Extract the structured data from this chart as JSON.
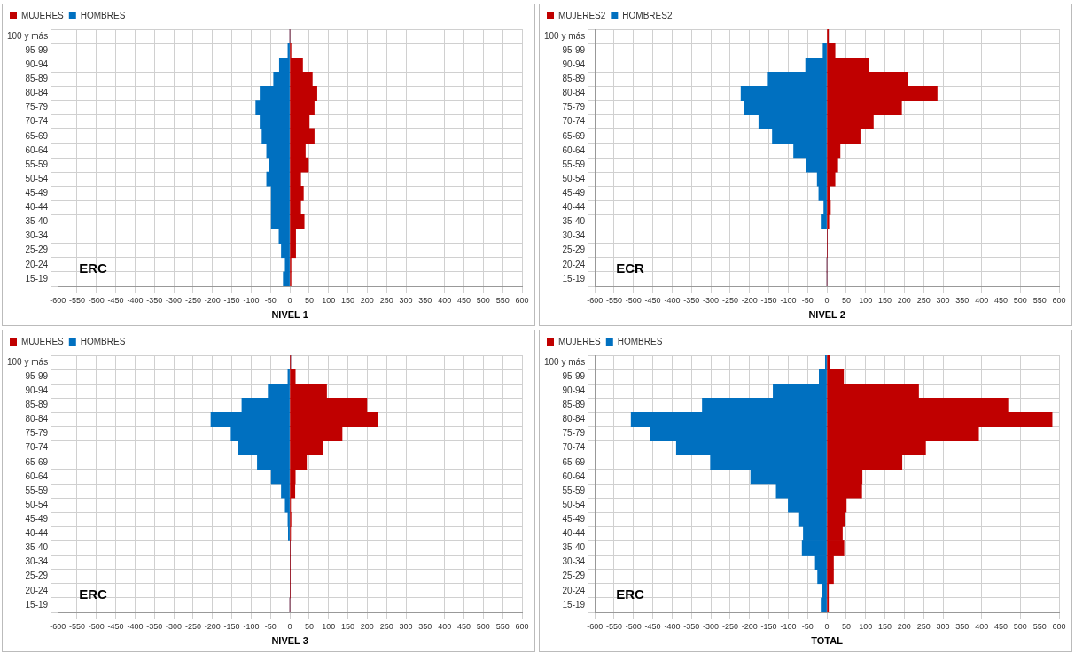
{
  "chart_data": [
    {
      "type": "bar",
      "orientation": "horizontal",
      "stacked": true,
      "xlabel": "NIVEL 1",
      "legend": "top left",
      "grid": true,
      "categories": [
        "100 y más",
        "95-99",
        "90-94",
        "85-89",
        "80-84",
        "75-79",
        "70-74",
        "65-69",
        "60-64",
        "55-59",
        "50-54",
        "45-49",
        "40-44",
        "35-40",
        "30-34",
        "25-29",
        "20-24",
        "15-19"
      ],
      "series": [
        {
          "name": "MUJERES",
          "color": "#c00000",
          "values": [
            0,
            3,
            33,
            58,
            70,
            63,
            50,
            63,
            40,
            48,
            28,
            35,
            28,
            37,
            15,
            15,
            3,
            3
          ]
        },
        {
          "name": "HOMBRES",
          "color": "#0070c0",
          "values": [
            0,
            -5,
            -27,
            -42,
            -77,
            -88,
            -77,
            -72,
            -60,
            -53,
            -60,
            -48,
            -48,
            -48,
            -28,
            -22,
            -12,
            -17
          ]
        }
      ],
      "xlim": [
        -600,
        600
      ],
      "xticks": [
        -600,
        -550,
        -500,
        -450,
        -400,
        -350,
        -300,
        -250,
        -200,
        -150,
        -100,
        -50,
        0,
        50,
        100,
        150,
        200,
        250,
        300,
        350,
        400,
        450,
        500,
        550,
        600
      ],
      "annotations": [
        "ERC"
      ]
    },
    {
      "type": "bar",
      "orientation": "horizontal",
      "stacked": true,
      "xlabel": "NIVEL 2",
      "legend": "top left",
      "grid": true,
      "categories": [
        "100 y más",
        "95-99",
        "90-94",
        "85-89",
        "80-84",
        "75-79",
        "70-74",
        "65-69",
        "60-64",
        "55-59",
        "50-54",
        "45-49",
        "40-44",
        "35-40",
        "30-34",
        "25-29",
        "20-24",
        "15-19"
      ],
      "series": [
        {
          "name": "MUJERES2",
          "color": "#c00000",
          "values": [
            4,
            21,
            108,
            209,
            285,
            193,
            120,
            86,
            34,
            28,
            21,
            8,
            9,
            5,
            1,
            1,
            0,
            0
          ]
        },
        {
          "name": "HOMBRES2",
          "color": "#0070c0",
          "values": [
            0,
            -10,
            -55,
            -152,
            -222,
            -214,
            -176,
            -141,
            -86,
            -53,
            -25,
            -21,
            -8,
            -15,
            0,
            0,
            0,
            0
          ]
        }
      ],
      "xlim": [
        -600,
        600
      ],
      "xticks": [
        -600,
        -550,
        -500,
        -450,
        -400,
        -350,
        -300,
        -250,
        -200,
        -150,
        -100,
        -50,
        0,
        50,
        100,
        150,
        200,
        250,
        300,
        350,
        400,
        450,
        500,
        550,
        600
      ],
      "annotations": [
        "ECR"
      ]
    },
    {
      "type": "bar",
      "orientation": "horizontal",
      "stacked": true,
      "xlabel": "NIVEL 3",
      "legend": "top left",
      "grid": true,
      "categories": [
        "100 y más",
        "95-99",
        "90-94",
        "85-89",
        "80-84",
        "75-79",
        "70-74",
        "65-69",
        "60-64",
        "55-59",
        "50-54",
        "45-49",
        "40-44",
        "35-40",
        "30-34",
        "25-29",
        "20-24",
        "15-19"
      ],
      "series": [
        {
          "name": "MUJERES",
          "color": "#c00000",
          "values": [
            2,
            14,
            95,
            199,
            228,
            135,
            84,
            43,
            14,
            13,
            2,
            3,
            2,
            1,
            1,
            1,
            1,
            0
          ]
        },
        {
          "name": "HOMBRES",
          "color": "#0070c0",
          "values": [
            0,
            -5,
            -56,
            -124,
            -204,
            -152,
            -133,
            -84,
            -48,
            -22,
            -12,
            -5,
            -4,
            0,
            0,
            0,
            0,
            0
          ]
        }
      ],
      "xlim": [
        -600,
        600
      ],
      "xticks": [
        -600,
        -550,
        -500,
        -450,
        -400,
        -350,
        -300,
        -250,
        -200,
        -150,
        -100,
        -50,
        0,
        50,
        100,
        150,
        200,
        250,
        300,
        350,
        400,
        450,
        500,
        550,
        600
      ],
      "annotations": [
        "ERC"
      ]
    },
    {
      "type": "bar",
      "orientation": "horizontal",
      "stacked": true,
      "xlabel": "TOTAL",
      "legend": "top left",
      "grid": true,
      "categories": [
        "100 y más",
        "95-99",
        "90-94",
        "85-89",
        "80-84",
        "75-79",
        "70-74",
        "65-69",
        "60-64",
        "55-59",
        "50-54",
        "45-49",
        "40-44",
        "35-40",
        "30-34",
        "25-29",
        "20-24",
        "15-19"
      ],
      "series": [
        {
          "name": "MUJERES",
          "color": "#c00000",
          "values": [
            8,
            43,
            237,
            468,
            582,
            392,
            255,
            194,
            91,
            90,
            50,
            47,
            40,
            44,
            17,
            17,
            4,
            4
          ]
        },
        {
          "name": "HOMBRES",
          "color": "#0070c0",
          "values": [
            -4,
            -20,
            -139,
            -322,
            -506,
            -456,
            -389,
            -301,
            -197,
            -131,
            -100,
            -71,
            -61,
            -64,
            -30,
            -24,
            -13,
            -15
          ]
        }
      ],
      "xlim": [
        -600,
        600
      ],
      "xticks": [
        -600,
        -550,
        -500,
        -450,
        -400,
        -350,
        -300,
        -250,
        -200,
        -150,
        -100,
        -50,
        0,
        50,
        100,
        150,
        200,
        250,
        300,
        350,
        400,
        450,
        500,
        550,
        600
      ],
      "annotations": [
        "ERC"
      ]
    }
  ]
}
